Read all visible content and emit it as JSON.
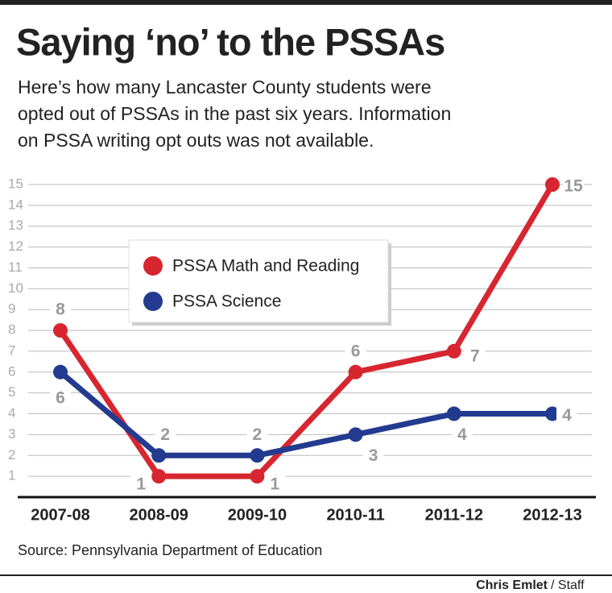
{
  "chart_data": {
    "type": "line",
    "title": "Saying ‘no’ to the PSSAs",
    "subtitle": "Here’s how many Lancaster County students were opted out of PSSAs in the past six years. Information on PSSA writing opt outs was not available.",
    "categories": [
      "2007-08",
      "2008-09",
      "2009-10",
      "2010-11",
      "2011-12",
      "2012-13"
    ],
    "series": [
      {
        "name": "PSSA Math and Reading",
        "color": "#d7262f",
        "values": [
          8,
          1,
          1,
          6,
          7,
          15
        ]
      },
      {
        "name": "PSSA Science",
        "color": "#233b8f",
        "values": [
          6,
          2,
          2,
          3,
          4,
          4
        ]
      }
    ],
    "ylim": [
      0,
      15
    ],
    "yticks": [
      1,
      2,
      3,
      4,
      5,
      6,
      7,
      8,
      9,
      10,
      11,
      12,
      13,
      14,
      15
    ],
    "grid": true,
    "source": "Source: Pennsylvania Department of Education",
    "credit_name": "Chris Emlet",
    "credit_role": "/ Staff"
  }
}
